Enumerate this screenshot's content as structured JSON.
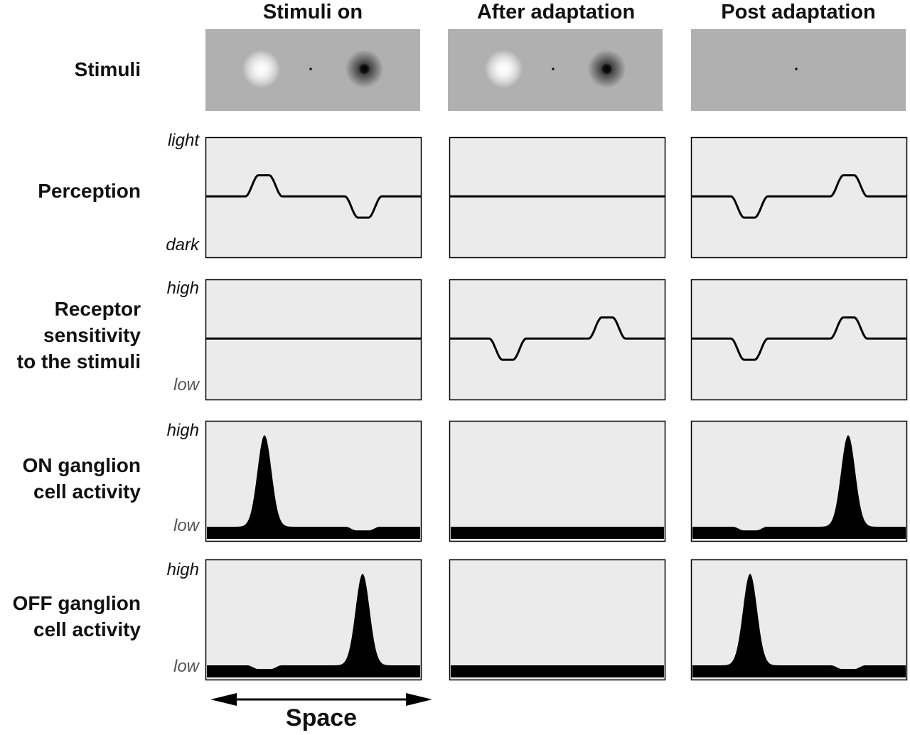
{
  "columns": [
    {
      "title": "Stimuli on"
    },
    {
      "title": "After adaptation"
    },
    {
      "title": "Post adaptation"
    }
  ],
  "rows": {
    "stimuli": {
      "label": [
        "Stimuli"
      ]
    },
    "perception": {
      "label": [
        "Perception"
      ],
      "axis_top": "light",
      "axis_bottom": "dark"
    },
    "receptor": {
      "label": [
        "Receptor",
        "sensitivity",
        "to the stimuli"
      ],
      "axis_top": "high",
      "axis_bottom": "low"
    },
    "on_ganglion": {
      "label": [
        "ON ganglion",
        "cell activity"
      ],
      "axis_top": "high",
      "axis_bottom": "low"
    },
    "off_ganglion": {
      "label": [
        "OFF ganglion",
        "cell activity"
      ],
      "axis_top": "high",
      "axis_bottom": "low"
    }
  },
  "x_axis": {
    "label": "Space"
  },
  "colors": {
    "panel_fill": "#ebebeb",
    "stimulus_background": "#b0b0b0",
    "curve": "#000000"
  },
  "panels": {
    "stimuli": [
      {
        "light_spot": true,
        "dark_spot": true
      },
      {
        "light_spot": true,
        "dark_spot": true
      },
      {
        "light_spot": false,
        "dark_spot": false
      }
    ],
    "perception": [
      {
        "bump_at_light": 1,
        "bump_at_dark": -1
      },
      {
        "bump_at_light": 0,
        "bump_at_dark": 0
      },
      {
        "bump_at_light": -1,
        "bump_at_dark": 1
      }
    ],
    "receptor": [
      {
        "bump_at_light": 0,
        "bump_at_dark": 0
      },
      {
        "bump_at_light": -1,
        "bump_at_dark": 1
      },
      {
        "bump_at_light": -1,
        "bump_at_dark": 1
      }
    ],
    "on_ganglion": [
      {
        "peak_at_light": 0.9,
        "dip_at_dark": 0.3
      },
      {
        "peak_at_light": 0,
        "dip_at_dark": 0
      },
      {
        "peak_at_dark": 0.9,
        "dip_at_light": 0.3
      }
    ],
    "off_ganglion": [
      {
        "peak_at_dark": 0.9,
        "dip_at_light": 0.3
      },
      {
        "peak_at_light": 0,
        "dip_at_dark": 0
      },
      {
        "peak_at_light": 0.9,
        "dip_at_dark": 0.3
      }
    ]
  }
}
